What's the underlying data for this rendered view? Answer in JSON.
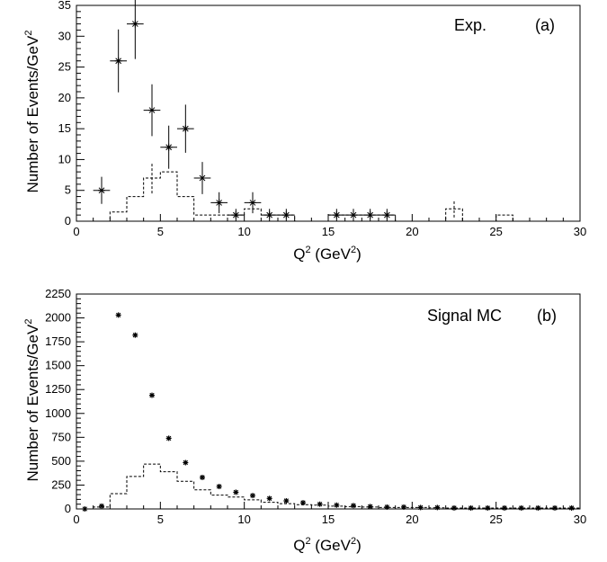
{
  "chart_data": [
    {
      "type": "scatter",
      "panel_label": "(a)",
      "annotation": "Exp.",
      "xlabel": "Q",
      "xlabel_sup": "2",
      "xlabel_rest": " (GeV",
      "xlabel_sup2": "2",
      "xlabel_end": ")",
      "ylabel": "Number of Events/GeV",
      "ylabel_sup": "2",
      "xlim": [
        0,
        30
      ],
      "ylim": [
        0,
        35
      ],
      "xticks": [
        0,
        5,
        10,
        15,
        20,
        25,
        30
      ],
      "xtick_labels": [
        "0",
        "5",
        "10",
        "15",
        "20",
        "25",
        "30"
      ],
      "yticks": [
        0,
        5,
        10,
        15,
        20,
        25,
        30,
        35
      ],
      "ytick_labels": [
        "0",
        "5",
        "10",
        "15",
        "20",
        "25",
        "30",
        "35"
      ],
      "series": [
        {
          "style": "points-with-errors",
          "x": [
            0.5,
            1.5,
            2.5,
            3.5,
            4.5,
            5.5,
            6.5,
            7.5,
            8.5,
            9.5,
            10.5,
            11.5,
            12.5,
            13.5,
            14.5,
            15.5,
            16.5,
            17.5,
            18.5,
            19.5,
            20.5,
            21.5,
            22.5,
            23.5,
            24.5,
            25.5,
            26.5,
            27.5,
            28.5,
            29.5
          ],
          "y": [
            0,
            5,
            26,
            32,
            18,
            12,
            15,
            7,
            3,
            1,
            3,
            1,
            1,
            0,
            0,
            1,
            1,
            1,
            1,
            0,
            0,
            0,
            0,
            0,
            0,
            0,
            0,
            0,
            0,
            0
          ],
          "yerr": [
            0,
            2.2,
            5.1,
            5.7,
            4.2,
            3.5,
            3.9,
            2.6,
            1.7,
            1.0,
            1.7,
            1.0,
            1.0,
            0,
            0,
            1.0,
            1.0,
            1.0,
            1.0,
            0,
            0,
            0,
            0,
            0,
            0,
            0,
            0,
            0,
            0,
            0
          ]
        },
        {
          "style": "dashed-histogram",
          "x": [
            0.5,
            1.5,
            2.5,
            3.5,
            4.5,
            5.5,
            6.5,
            7.5,
            8.5,
            9.5,
            10.5,
            11.5,
            12.5,
            13.5,
            14.5,
            15.5,
            16.5,
            17.5,
            18.5,
            19.5,
            20.5,
            21.5,
            22.5,
            23.5,
            24.5,
            25.5,
            26.5,
            27.5,
            28.5,
            29.5
          ],
          "y": [
            0,
            0,
            1.5,
            4,
            7,
            8,
            4,
            1,
            1,
            1,
            2,
            1,
            1,
            0,
            0,
            1,
            1,
            1,
            1,
            0,
            0,
            0,
            2,
            0,
            0,
            1,
            0,
            0,
            0,
            0
          ],
          "yerr": [
            0,
            0,
            0,
            0,
            2.5,
            0,
            0,
            0,
            0,
            0,
            0,
            0,
            0,
            0,
            0,
            0,
            0,
            0,
            0,
            0,
            0,
            0,
            1.4,
            0,
            0,
            0,
            0,
            0,
            0,
            0
          ]
        }
      ]
    },
    {
      "type": "scatter",
      "panel_label": "(b)",
      "annotation": "Signal MC",
      "xlabel": "Q",
      "xlabel_sup": "2",
      "xlabel_rest": " (GeV",
      "xlabel_sup2": "2",
      "xlabel_end": ")",
      "ylabel": "Number of Events/GeV",
      "ylabel_sup": "2",
      "xlim": [
        0,
        30
      ],
      "ylim": [
        0,
        2250
      ],
      "xticks": [
        0,
        5,
        10,
        15,
        20,
        25,
        30
      ],
      "xtick_labels": [
        "0",
        "5",
        "10",
        "15",
        "20",
        "25",
        "30"
      ],
      "yticks": [
        0,
        250,
        500,
        750,
        1000,
        1250,
        1500,
        1750,
        2000,
        2250
      ],
      "ytick_labels": [
        "0",
        "250",
        "500",
        "750",
        "1000",
        "1250",
        "1500",
        "1750",
        "2000",
        "2250"
      ],
      "series": [
        {
          "style": "points",
          "x": [
            0.5,
            1.5,
            2.5,
            3.5,
            4.5,
            5.5,
            6.5,
            7.5,
            8.5,
            9.5,
            10.5,
            11.5,
            12.5,
            13.5,
            14.5,
            15.5,
            16.5,
            17.5,
            18.5,
            19.5,
            20.5,
            21.5,
            22.5,
            23.5,
            24.5,
            25.5,
            26.5,
            27.5,
            28.5,
            29.5
          ],
          "y": [
            0,
            30,
            2030,
            1820,
            1190,
            740,
            485,
            330,
            235,
            175,
            140,
            110,
            85,
            65,
            50,
            40,
            35,
            25,
            20,
            20,
            15,
            15,
            10,
            10,
            10,
            10,
            10,
            10,
            10,
            10
          ]
        },
        {
          "style": "dashed-histogram",
          "x": [
            0.5,
            1.5,
            2.5,
            3.5,
            4.5,
            5.5,
            6.5,
            7.5,
            8.5,
            9.5,
            10.5,
            11.5,
            12.5,
            13.5,
            14.5,
            15.5,
            16.5,
            17.5,
            18.5,
            19.5,
            20.5,
            21.5,
            22.5,
            23.5,
            24.5,
            25.5,
            26.5,
            27.5,
            28.5,
            29.5
          ],
          "y": [
            0,
            20,
            160,
            340,
            470,
            390,
            290,
            200,
            145,
            125,
            95,
            70,
            55,
            45,
            40,
            30,
            25,
            20,
            15,
            15,
            15,
            12,
            10,
            10,
            10,
            10,
            10,
            10,
            10,
            10
          ]
        }
      ]
    }
  ]
}
